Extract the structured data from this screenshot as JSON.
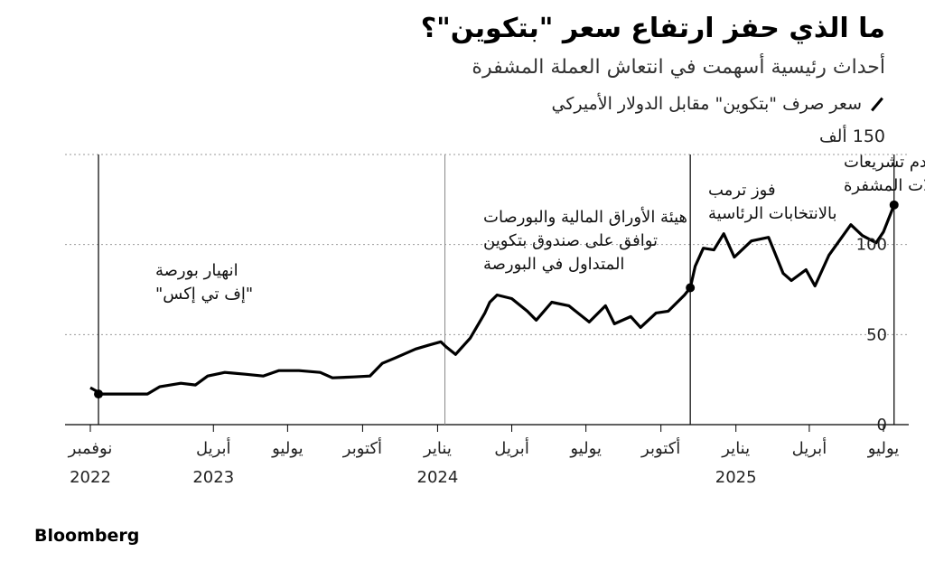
{
  "chart_data": {
    "type": "line",
    "title": "ما الذي حفز ارتفاع سعر \"بتكوين\"؟",
    "subtitle": "أحداث رئيسية أسهمت في انتعاش العملة المشفرة",
    "legend": "سعر صرف \"بتكوين\" مقابل الدولار الأميركي",
    "unit_label": "150 ألف",
    "source": "Bloomberg",
    "y_ticks": [
      {
        "value": 100,
        "label": "100"
      },
      {
        "value": 50,
        "label": "50"
      },
      {
        "value": 0,
        "label": "0"
      }
    ],
    "ylim": [
      0,
      150
    ],
    "xlim": [
      "2022-11-01",
      "2025-08-01"
    ],
    "x_ticks": [
      {
        "date": "2022-11-01",
        "label": "نوفمبر",
        "year": "2022"
      },
      {
        "date": "2023-04-01",
        "label": "أبريل",
        "year": "2023"
      },
      {
        "date": "2023-07-01",
        "label": "يوليو",
        "year": ""
      },
      {
        "date": "2023-10-01",
        "label": "أكتوبر",
        "year": ""
      },
      {
        "date": "2024-01-01",
        "label": "يناير",
        "year": "2024"
      },
      {
        "date": "2024-04-01",
        "label": "أبريل",
        "year": ""
      },
      {
        "date": "2024-07-01",
        "label": "يوليو",
        "year": ""
      },
      {
        "date": "2024-10-01",
        "label": "أكتوبر",
        "year": ""
      },
      {
        "date": "2025-01-01",
        "label": "يناير",
        "year": "2025"
      },
      {
        "date": "2025-04-01",
        "label": "أبريل",
        "year": ""
      },
      {
        "date": "2025-07-01",
        "label": "يوليو",
        "year": ""
      }
    ],
    "series": [
      {
        "x": [
          "2022-11-01",
          "2022-11-15",
          "2022-12-15",
          "2023-01-10",
          "2023-01-25",
          "2023-02-20",
          "2023-03-10",
          "2023-03-25",
          "2023-04-15",
          "2023-05-10",
          "2023-06-01",
          "2023-06-20",
          "2023-07-15",
          "2023-08-10",
          "2023-08-25",
          "2023-09-20",
          "2023-10-10",
          "2023-10-25",
          "2023-11-10",
          "2023-12-05",
          "2023-12-20",
          "2024-01-05",
          "2024-01-12",
          "2024-01-23",
          "2024-02-10",
          "2024-02-28",
          "2024-03-05",
          "2024-03-14",
          "2024-04-01",
          "2024-04-20",
          "2024-05-01",
          "2024-05-20",
          "2024-06-10",
          "2024-07-05",
          "2024-07-25",
          "2024-08-05",
          "2024-08-25",
          "2024-09-06",
          "2024-09-25",
          "2024-10-10",
          "2024-10-30",
          "2024-11-06",
          "2024-11-12",
          "2024-11-22",
          "2024-12-05",
          "2024-12-17",
          "2024-12-30",
          "2025-01-20",
          "2025-02-10",
          "2025-02-28",
          "2025-03-10",
          "2025-03-28",
          "2025-04-08",
          "2025-04-25",
          "2025-05-22",
          "2025-06-05",
          "2025-06-22",
          "2025-07-01",
          "2025-07-14"
        ],
        "values": [
          20.5,
          17,
          17,
          17,
          21,
          23,
          22,
          27,
          29,
          28,
          27,
          30,
          30,
          29,
          26,
          26.5,
          27,
          34,
          37,
          42,
          44,
          46,
          43,
          39,
          48,
          62,
          68,
          72,
          70,
          63,
          58,
          68,
          66,
          57,
          66,
          56,
          60,
          54,
          62,
          63,
          72,
          76,
          88,
          98,
          97,
          106,
          93,
          102,
          104,
          84,
          80,
          86,
          77,
          94,
          111,
          105,
          101,
          107,
          122
        ]
      }
    ],
    "annotations": [
      {
        "date": "2022-11-11",
        "value": 17,
        "lines": [
          "انهيار بورصة",
          "\"إف تي إكس\""
        ]
      },
      {
        "date": "2024-01-10",
        "value": 46,
        "lines": [
          "هيئة الأوراق المالية والبورصات",
          "توافق على صندوق بتكوين",
          "المتداول في البورصة"
        ]
      },
      {
        "date": "2024-11-06",
        "value": 76,
        "lines": [
          "فوز ترمب",
          "بالانتخابات الرئاسية"
        ]
      },
      {
        "date": "2025-07-14",
        "value": 122,
        "lines": [
          "تقدم تشريعات",
          "العملات المشفرة"
        ]
      }
    ]
  }
}
